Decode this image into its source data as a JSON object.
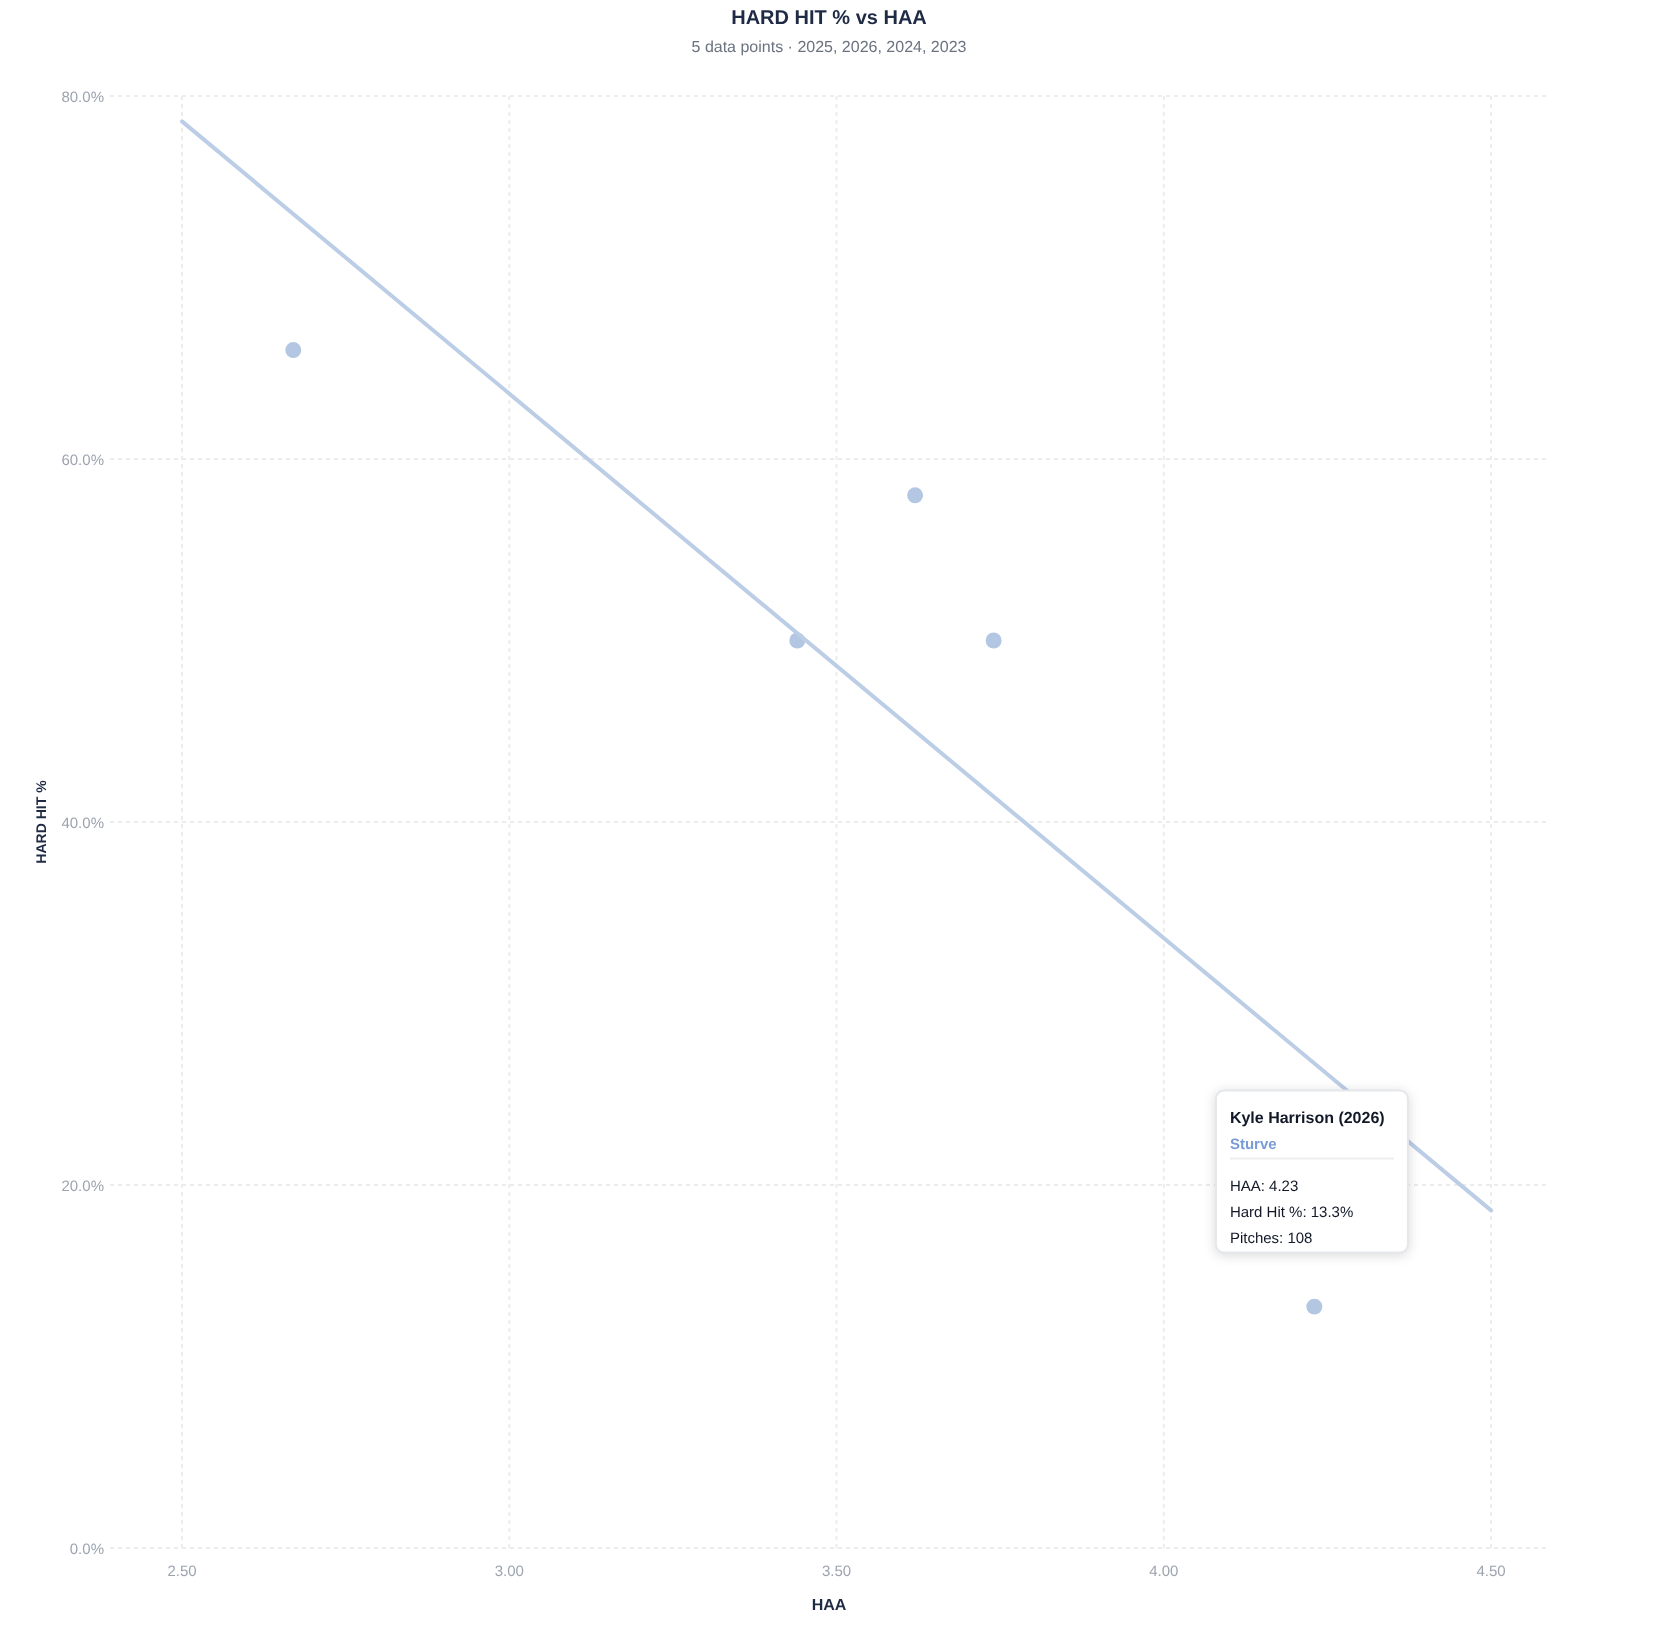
{
  "chart_data": {
    "type": "scatter",
    "title": "HARD HIT % vs HAA",
    "subtitle": "5 data points · 2025, 2026, 2024, 2023",
    "xlabel": "HAA",
    "ylabel": "HARD HIT %",
    "series": [
      {
        "color": "#b3c6e2",
        "marker": "circle",
        "x": [
          2.67,
          3.44,
          3.62,
          3.74,
          4.23
        ],
        "values": [
          66.0,
          50.0,
          58.0,
          50.0,
          13.3
        ]
      },
      {
        "type": "line",
        "color": "#bccde6",
        "marker": "none",
        "x": [
          2.5,
          4.5
        ],
        "values": [
          78.6,
          18.6
        ]
      }
    ],
    "xlim": [
      2.39,
      4.59
    ],
    "ylim": [
      0,
      80
    ],
    "xticks": [
      {
        "value": 2.5,
        "label": "2.50"
      },
      {
        "value": 3,
        "label": "3.00"
      },
      {
        "value": 3.5,
        "label": "3.50"
      },
      {
        "value": 4,
        "label": "4.00"
      },
      {
        "value": 4.5,
        "label": "4.50"
      }
    ],
    "yticks": [
      {
        "value": 0,
        "label": "0.0%"
      },
      {
        "value": 20,
        "label": "20.0%"
      },
      {
        "value": 40,
        "label": "40.0%"
      },
      {
        "value": 60,
        "label": "60.0%"
      },
      {
        "value": 80,
        "label": "80.0%"
      }
    ],
    "grid": true,
    "annotations": [
      "Kyle Harrison (2026)",
      "Sturve",
      "HAA: 4.23",
      "Hard Hit %: 13.3%",
      "Pitches: 108"
    ]
  }
}
